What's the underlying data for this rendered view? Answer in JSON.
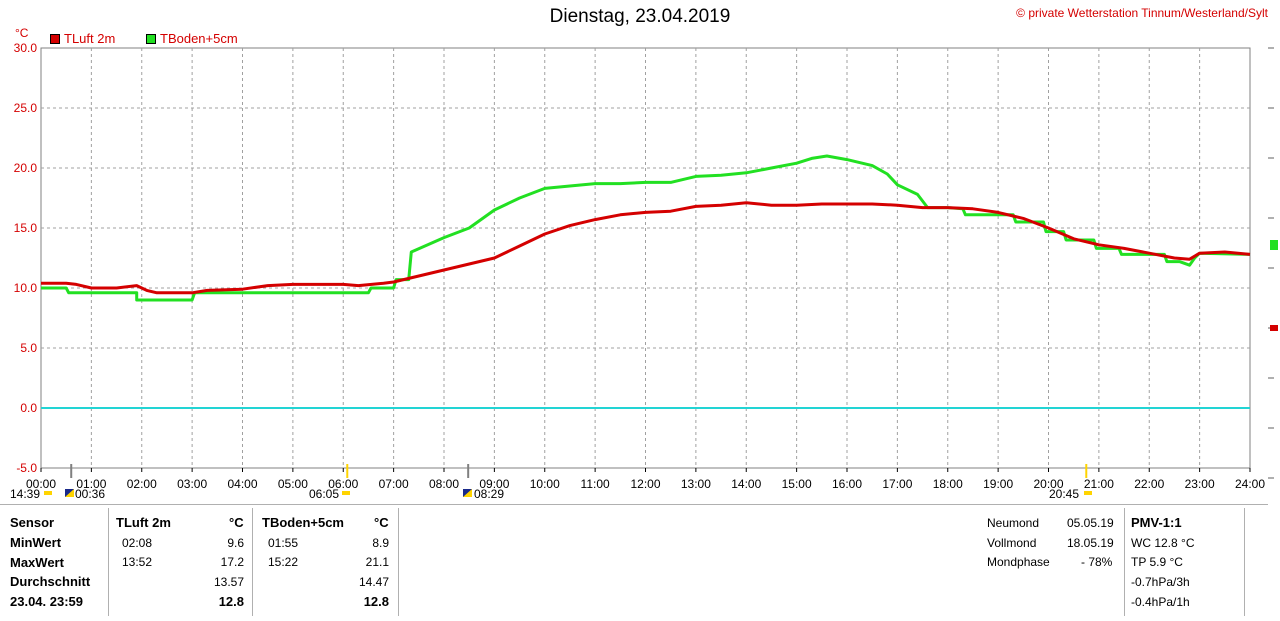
{
  "header": {
    "title": "Dienstag, 23.04.2019",
    "copyright": "© private Wetterstation Tinnum/Westerland/Sylt",
    "unit": "°C",
    "legend": [
      {
        "label": "TLuft 2m",
        "color": "#d40000"
      },
      {
        "label": "TBoden+5cm",
        "color": "#22e022"
      }
    ]
  },
  "markers": {
    "sunrise_left": "14:39",
    "moon_left": "00:36",
    "sunrise": "06:05",
    "moon": "08:29",
    "sunset": "20:45"
  },
  "chart_data": {
    "type": "line",
    "x_unit": "time of day",
    "x_ticks": [
      "00:00",
      "01:00",
      "02:00",
      "03:00",
      "04:00",
      "05:00",
      "06:00",
      "07:00",
      "08:00",
      "09:00",
      "10:00",
      "11:00",
      "12:00",
      "13:00",
      "14:00",
      "15:00",
      "16:00",
      "17:00",
      "18:00",
      "19:00",
      "20:00",
      "21:00",
      "22:00",
      "23:00",
      "24:00"
    ],
    "y_ticks": [
      "-5.0",
      "0.0",
      "5.0",
      "10.0",
      "15.0",
      "20.0",
      "25.0",
      "30.0"
    ],
    "xlim": [
      0,
      24
    ],
    "ylim": [
      -5,
      30
    ],
    "grid": true,
    "zero_line_color": "#22d4d4",
    "series": [
      {
        "name": "TLuft 2m",
        "color": "#d40000",
        "points": [
          [
            0,
            10.4
          ],
          [
            0.5,
            10.4
          ],
          [
            0.7,
            10.3
          ],
          [
            1,
            10.0
          ],
          [
            1.5,
            10.0
          ],
          [
            1.9,
            10.2
          ],
          [
            2.1,
            9.8
          ],
          [
            2.3,
            9.6
          ],
          [
            3,
            9.6
          ],
          [
            3.3,
            9.8
          ],
          [
            4,
            9.9
          ],
          [
            4.5,
            10.2
          ],
          [
            5,
            10.3
          ],
          [
            6,
            10.3
          ],
          [
            6.3,
            10.2
          ],
          [
            6.8,
            10.4
          ],
          [
            7,
            10.5
          ],
          [
            7.5,
            11.0
          ],
          [
            8,
            11.5
          ],
          [
            8.5,
            12.0
          ],
          [
            9,
            12.5
          ],
          [
            9.5,
            13.5
          ],
          [
            10,
            14.5
          ],
          [
            10.5,
            15.2
          ],
          [
            11,
            15.7
          ],
          [
            11.5,
            16.1
          ],
          [
            12,
            16.3
          ],
          [
            12.5,
            16.4
          ],
          [
            13,
            16.8
          ],
          [
            13.5,
            16.9
          ],
          [
            14,
            17.1
          ],
          [
            14.5,
            16.9
          ],
          [
            15,
            16.9
          ],
          [
            15.5,
            17.0
          ],
          [
            16,
            17.0
          ],
          [
            16.5,
            17.0
          ],
          [
            17,
            16.9
          ],
          [
            17.5,
            16.7
          ],
          [
            18,
            16.7
          ],
          [
            18.5,
            16.6
          ],
          [
            19,
            16.3
          ],
          [
            19.5,
            15.8
          ],
          [
            20,
            15.0
          ],
          [
            20.5,
            14.1
          ],
          [
            21,
            13.6
          ],
          [
            21.5,
            13.3
          ],
          [
            22,
            12.9
          ],
          [
            22.5,
            12.5
          ],
          [
            22.8,
            12.4
          ],
          [
            23,
            12.9
          ],
          [
            23.5,
            13.0
          ],
          [
            24,
            12.8
          ]
        ]
      },
      {
        "name": "TBoden+5cm",
        "color": "#22e022",
        "points": [
          [
            0,
            10.0
          ],
          [
            0.5,
            10.0
          ],
          [
            0.55,
            9.6
          ],
          [
            1,
            9.6
          ],
          [
            1.9,
            9.6
          ],
          [
            1.9,
            9.0
          ],
          [
            3,
            9.0
          ],
          [
            3.05,
            9.6
          ],
          [
            6.5,
            9.6
          ],
          [
            6.55,
            10.0
          ],
          [
            7,
            10.0
          ],
          [
            7.05,
            10.7
          ],
          [
            7.3,
            10.7
          ],
          [
            7.35,
            13.0
          ],
          [
            8,
            14.2
          ],
          [
            8.5,
            15.0
          ],
          [
            9,
            16.5
          ],
          [
            9.5,
            17.5
          ],
          [
            10,
            18.3
          ],
          [
            10.5,
            18.5
          ],
          [
            11,
            18.7
          ],
          [
            11.5,
            18.7
          ],
          [
            12,
            18.8
          ],
          [
            12.5,
            18.8
          ],
          [
            13,
            19.3
          ],
          [
            13.5,
            19.4
          ],
          [
            14,
            19.6
          ],
          [
            14.5,
            20.0
          ],
          [
            15,
            20.4
          ],
          [
            15.3,
            20.8
          ],
          [
            15.6,
            21.0
          ],
          [
            16,
            20.7
          ],
          [
            16.5,
            20.2
          ],
          [
            16.8,
            19.5
          ],
          [
            17,
            18.6
          ],
          [
            17.4,
            17.8
          ],
          [
            17.6,
            16.7
          ],
          [
            18,
            16.7
          ],
          [
            18.3,
            16.6
          ],
          [
            18.35,
            16.1
          ],
          [
            19.3,
            16.1
          ],
          [
            19.35,
            15.5
          ],
          [
            19.9,
            15.5
          ],
          [
            19.95,
            14.7
          ],
          [
            20.3,
            14.7
          ],
          [
            20.35,
            14.0
          ],
          [
            20.9,
            14.0
          ],
          [
            20.95,
            13.3
          ],
          [
            21.4,
            13.3
          ],
          [
            21.45,
            12.8
          ],
          [
            22.3,
            12.8
          ],
          [
            22.35,
            12.2
          ],
          [
            22.6,
            12.2
          ],
          [
            22.8,
            11.9
          ],
          [
            22.9,
            12.5
          ],
          [
            23,
            12.9
          ],
          [
            24,
            12.8
          ]
        ]
      }
    ]
  },
  "stats": {
    "header_sensor": "Sensor",
    "header_s1": "TLuft 2m",
    "header_s2": "TBoden+5cm",
    "unit": "°C",
    "rows": {
      "min_label": "MinWert",
      "min_t1": "02:08",
      "min_v1": "9.6",
      "min_t2": "01:55",
      "min_v2": "8.9",
      "max_label": "MaxWert",
      "max_t1": "13:52",
      "max_v1": "17.2",
      "max_t2": "15:22",
      "max_v2": "21.1",
      "avg_label": "Durchschnitt",
      "avg_v1": "13.57",
      "avg_v2": "14.47",
      "cur_label": "23.04. 23:59",
      "cur_v1": "12.8",
      "cur_v2": "12.8"
    },
    "moon": {
      "new_label": "Neumond",
      "new_date": "05.05.19",
      "full_label": "Vollmond",
      "full_date": "18.05.19",
      "phase_label": "Mondphase",
      "phase_value": "- 78%"
    },
    "pmv": {
      "title": "PMV-1:1",
      "wc": "WC 12.8 °C",
      "tp": "TP 5.9 °C",
      "p3h": "-0.7hPa/3h",
      "p1h": "-0.4hPa/1h"
    }
  }
}
